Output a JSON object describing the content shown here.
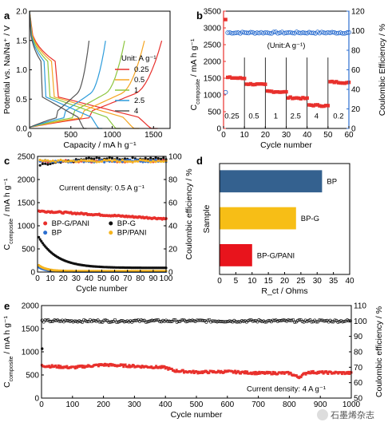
{
  "chart_data": [
    {
      "id": "a",
      "panel_label": "a",
      "type": "line",
      "xlabel": "Capacity / mA h g⁻¹",
      "ylabel": "Potential vs. Na/Na⁺ / V",
      "xlim": [
        0,
        1700
      ],
      "ylim": [
        0,
        2.0
      ],
      "xticks": [
        0,
        500,
        1000,
        1500
      ],
      "yticks": [
        0.0,
        0.5,
        1.0,
        1.5,
        2.0
      ],
      "legend_title": "Unit: A g⁻¹",
      "legend_position": "right",
      "series": [
        {
          "name": "0.25",
          "color": "#e8302c",
          "charge_end": 1600,
          "discharge_end": 1550
        },
        {
          "name": "0.5",
          "color": "#f5a623",
          "charge_end": 1390,
          "discharge_end": 1330
        },
        {
          "name": "1",
          "color": "#8dc63f",
          "charge_end": 1150,
          "discharge_end": 1100
        },
        {
          "name": "2.5",
          "color": "#2d9cdb",
          "charge_end": 920,
          "discharge_end": 880
        },
        {
          "name": "4",
          "color": "#555555",
          "charge_end": 720,
          "discharge_end": 690
        }
      ]
    },
    {
      "id": "b",
      "panel_label": "b",
      "type": "scatter",
      "xlabel": "Cycle number",
      "ylabel_left": "C_composite / mA h g⁻¹",
      "ylabel_right": "Coulombic Efficiency / %",
      "xlim": [
        0,
        60
      ],
      "ylim_left": [
        0,
        3500
      ],
      "ylim_right": [
        0,
        120
      ],
      "xticks": [
        0,
        10,
        20,
        30,
        40,
        50,
        60
      ],
      "yticks_left": [
        0,
        500,
        1000,
        1500,
        2000,
        2500,
        3000,
        3500
      ],
      "yticks_right": [
        0,
        20,
        40,
        60,
        80,
        100,
        120
      ],
      "unit_note": "(Unit:A g⁻¹)",
      "rate_labels": [
        {
          "text": "0.25",
          "x": 4
        },
        {
          "text": "0.5",
          "x": 14.5
        },
        {
          "text": "1",
          "x": 25
        },
        {
          "text": "2.5",
          "x": 34.5
        },
        {
          "text": "4",
          "x": 44.5
        },
        {
          "text": "0.2",
          "x": 55
        }
      ],
      "capacity_color": "#e8302c",
      "ce_color": "#2d6fd0",
      "capacity_segments": [
        {
          "from": 1,
          "to": 10,
          "value": 1520
        },
        {
          "from": 11,
          "to": 20,
          "value": 1330
        },
        {
          "from": 21,
          "to": 30,
          "value": 1110
        },
        {
          "from": 31,
          "to": 40,
          "value": 920
        },
        {
          "from": 41,
          "to": 50,
          "value": 700
        },
        {
          "from": 51,
          "to": 60,
          "value": 1390
        }
      ],
      "capacity_first": 3250,
      "ce_first": 37,
      "ce_value": 98
    },
    {
      "id": "c",
      "panel_label": "c",
      "type": "scatter",
      "xlabel": "Cycle number",
      "ylabel_left": "C_composite / mA h g⁻¹",
      "ylabel_right": "Coulombic efficiency / %",
      "xlim": [
        0,
        100
      ],
      "ylim_left": [
        0,
        2500
      ],
      "ylim_right": [
        0,
        100
      ],
      "xticks": [
        0,
        10,
        20,
        30,
        40,
        50,
        60,
        70,
        80,
        90,
        100
      ],
      "yticks_left": [
        0,
        500,
        1000,
        1500,
        2000,
        2500
      ],
      "yticks_right": [
        0,
        20,
        40,
        60,
        80,
        100
      ],
      "annotation": "Current density: 0.5 A g⁻¹",
      "legend_position": "center-left",
      "series": [
        {
          "name": "BP-G/PANI",
          "color": "#e8302c",
          "start": 1320,
          "end": 1150
        },
        {
          "name": "BP-G",
          "color": "#111111",
          "start": 800,
          "end": 90
        },
        {
          "name": "BP",
          "color": "#2d6fd0",
          "start": 120,
          "end": 10
        },
        {
          "name": "BP/PANI",
          "color": "#f5b41e",
          "start": 170,
          "end": 20
        }
      ]
    },
    {
      "id": "d",
      "panel_label": "d",
      "type": "bar",
      "orientation": "horizontal",
      "xlabel": "R_ct / Ohms",
      "ylabel": "Sample",
      "xlim": [
        0,
        40
      ],
      "xticks": [
        0,
        5,
        10,
        15,
        20,
        25,
        30,
        35,
        40
      ],
      "categories": [
        "BP",
        "BP-G",
        "BP-G/PANI"
      ],
      "values": [
        31.5,
        23.5,
        10.0
      ],
      "colors": [
        "#34618f",
        "#f7be16",
        "#e8141c"
      ]
    },
    {
      "id": "e",
      "panel_label": "e",
      "type": "scatter",
      "xlabel": "Cycle number",
      "ylabel_left": "C_composite / mA h g⁻¹",
      "ylabel_right": "Coulombic efficiency / %",
      "xlim": [
        0,
        1000
      ],
      "ylim_left": [
        0,
        2000
      ],
      "ylim_right": [
        50,
        110
      ],
      "xticks": [
        0,
        100,
        200,
        300,
        400,
        500,
        600,
        700,
        800,
        900,
        1000
      ],
      "yticks_left": [
        0,
        500,
        1000,
        1500,
        2000
      ],
      "yticks_right": [
        50,
        60,
        70,
        80,
        90,
        100,
        110
      ],
      "annotation": "Current density: 4 A g⁻¹",
      "capacity_color": "#e8302c",
      "ce_color": "#111111",
      "capacity_profile": [
        {
          "cycle": 0,
          "value": 700
        },
        {
          "cycle": 100,
          "value": 660
        },
        {
          "cycle": 200,
          "value": 720
        },
        {
          "cycle": 300,
          "value": 690
        },
        {
          "cycle": 400,
          "value": 660
        },
        {
          "cycle": 430,
          "value": 590
        },
        {
          "cycle": 500,
          "value": 560
        },
        {
          "cycle": 600,
          "value": 570
        },
        {
          "cycle": 700,
          "value": 540
        },
        {
          "cycle": 800,
          "value": 540
        },
        {
          "cycle": 830,
          "value": 450
        },
        {
          "cycle": 860,
          "value": 560
        },
        {
          "cycle": 1000,
          "value": 540
        }
      ],
      "ce_value": 100
    }
  ],
  "watermark": "石墨烯杂志"
}
